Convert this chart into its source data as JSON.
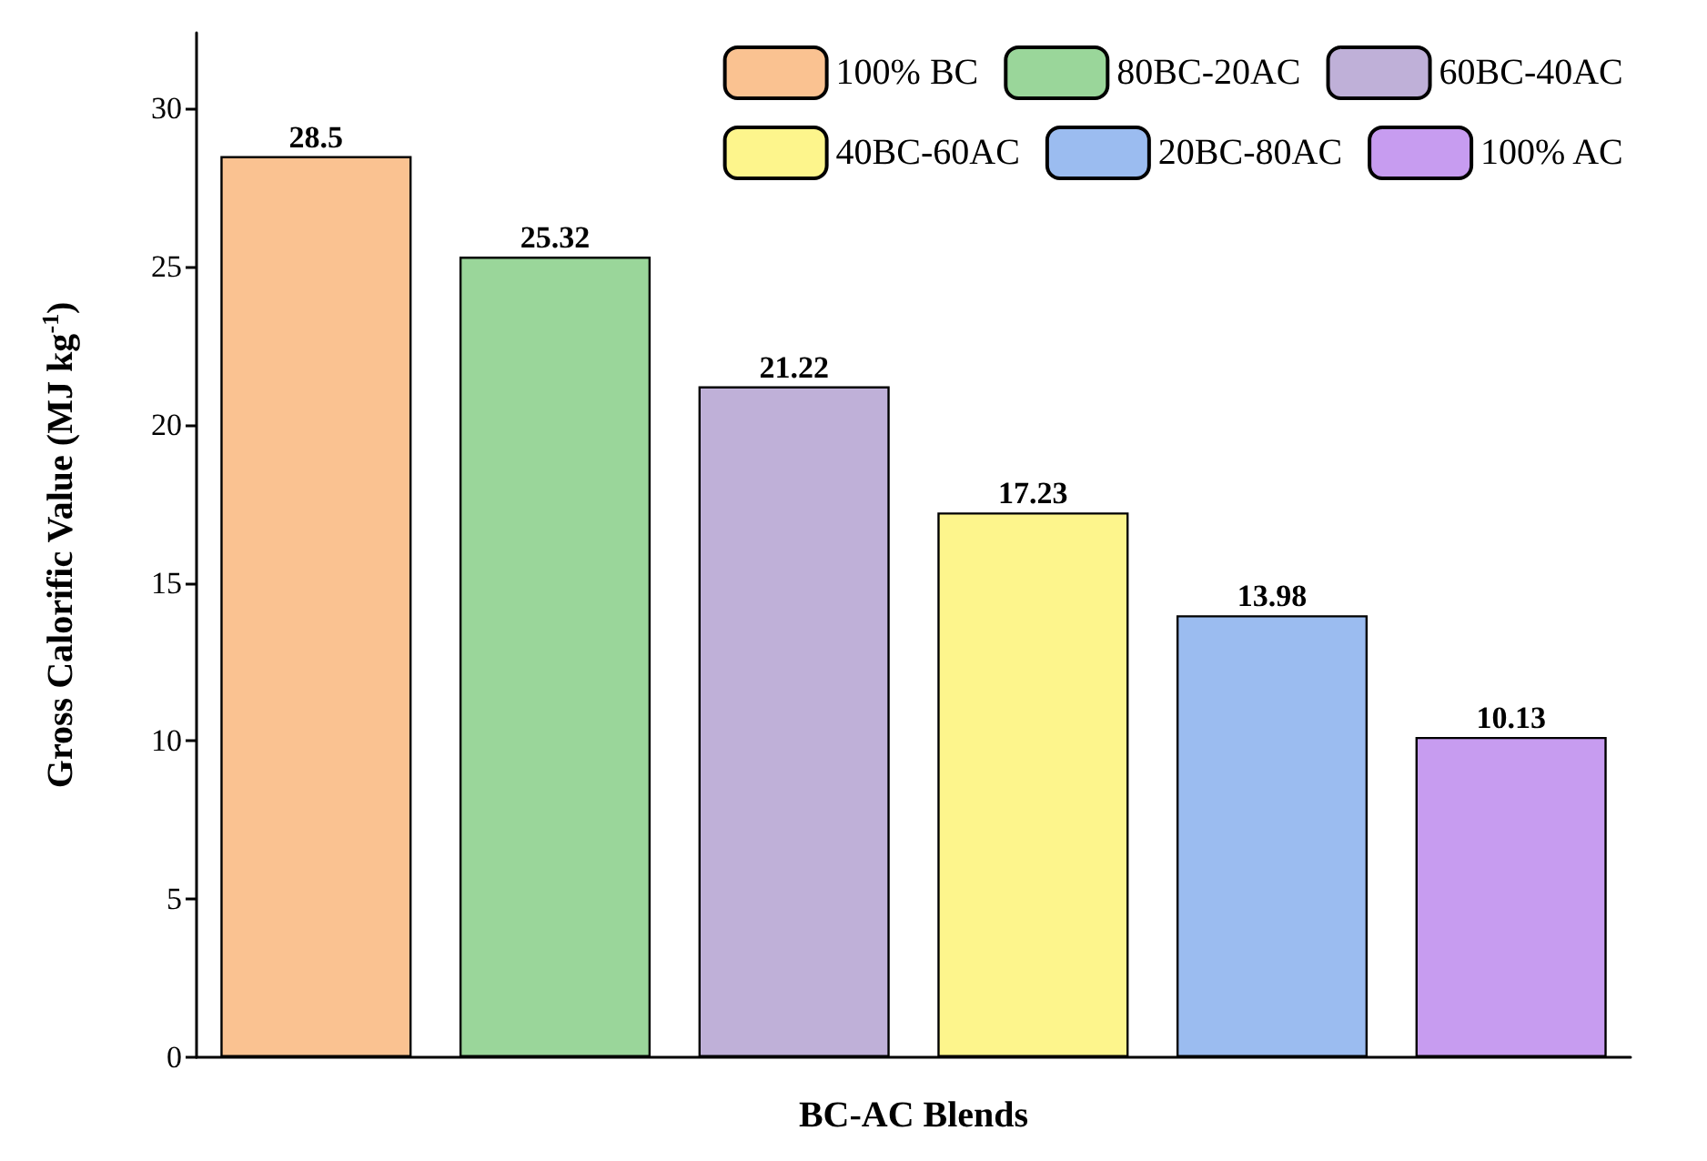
{
  "chart_data": {
    "type": "bar",
    "xlabel": "BC-AC Blends",
    "ylabel": "Gross Calorific Value (MJ kg$^{-1}$)",
    "categories": [
      null,
      null,
      null,
      null,
      null,
      null
    ],
    "series": [
      {
        "name": "100% BC",
        "color": "#fac291",
        "values": [
          28.5,
          null,
          null,
          null,
          null,
          null
        ]
      },
      {
        "name": "80BC-20AC",
        "color": "#9ad69a",
        "values": [
          null,
          25.32,
          null,
          null,
          null,
          null
        ]
      },
      {
        "name": "60BC-40AC",
        "color": "#bfb0d8",
        "values": [
          null,
          null,
          21.22,
          null,
          null,
          null
        ]
      },
      {
        "name": "40BC-60AC",
        "color": "#fdf58c",
        "values": [
          null,
          null,
          null,
          17.23,
          null,
          null
        ]
      },
      {
        "name": "20BC-80AC",
        "color": "#9bbcf0",
        "values": [
          null,
          null,
          null,
          null,
          13.98,
          null
        ]
      },
      {
        "name": "100% AC",
        "color": "#c79cf0",
        "values": [
          null,
          null,
          null,
          null,
          null,
          10.13
        ]
      }
    ],
    "ylim": [
      0,
      32.4
    ],
    "yticks": [
      0,
      5,
      10,
      15,
      20,
      25,
      30
    ],
    "data_labels": true,
    "legend": "top right",
    "grid": false
  }
}
